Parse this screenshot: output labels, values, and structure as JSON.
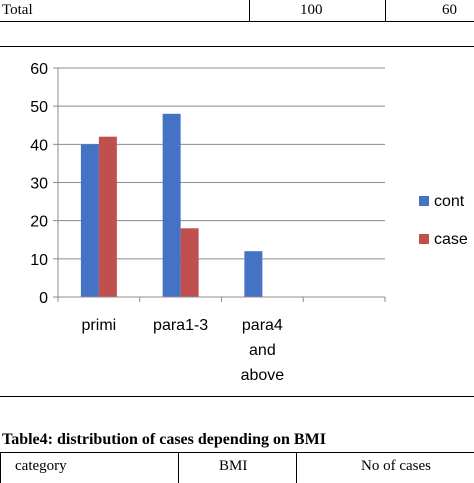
{
  "top_table": {
    "label": "Total",
    "value1": "100",
    "value2": "60"
  },
  "chart_data": {
    "type": "bar",
    "categories": [
      "primi",
      "para1-3",
      "para4 and above"
    ],
    "category_lines": [
      [
        "primi"
      ],
      [
        "para1-3"
      ],
      [
        "para4",
        "and",
        "above"
      ]
    ],
    "series": [
      {
        "name": "cont",
        "values": [
          40,
          48,
          12
        ],
        "color": "#4472C4"
      },
      {
        "name": "case",
        "values": [
          42,
          18,
          0
        ],
        "color": "#C0504D"
      }
    ],
    "ylim": [
      0,
      60
    ],
    "yticks": [
      0,
      10,
      20,
      30,
      40,
      50,
      60
    ],
    "grid": true,
    "legend": "right"
  },
  "caption": "Table4: distribution of cases depending on BMI",
  "bottom_table": {
    "headers": [
      "category",
      "BMI",
      "No of cases"
    ]
  }
}
